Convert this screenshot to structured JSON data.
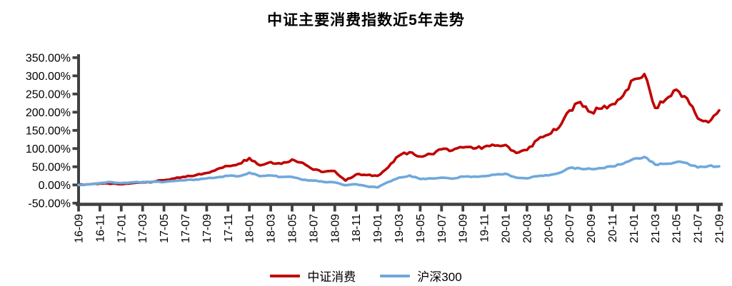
{
  "title": "中证主要消费指数近5年走势",
  "chart_data": {
    "type": "line",
    "title": "中证主要消费指数近5年走势",
    "grid": false,
    "legend_position": "bottom",
    "categories": [
      "16-09",
      "16-10",
      "16-11",
      "16-12",
      "17-01",
      "17-02",
      "17-03",
      "17-04",
      "17-05",
      "17-06",
      "17-07",
      "17-08",
      "17-09",
      "17-10",
      "17-11",
      "17-12",
      "18-01",
      "18-02",
      "18-03",
      "18-04",
      "18-05",
      "18-06",
      "18-07",
      "18-08",
      "18-09",
      "18-10",
      "18-11",
      "18-12",
      "19-01",
      "19-02",
      "19-03",
      "19-04",
      "19-05",
      "19-06",
      "19-07",
      "19-08",
      "19-09",
      "19-10",
      "19-11",
      "19-12",
      "20-01",
      "20-02",
      "20-03",
      "20-04",
      "20-05",
      "20-06",
      "20-07",
      "20-08",
      "20-09",
      "20-10",
      "20-11",
      "20-12",
      "21-01",
      "21-02",
      "21-03",
      "21-04",
      "21-05",
      "21-06",
      "21-07",
      "21-08",
      "21-09"
    ],
    "x_tick_labels": [
      "16-09",
      "16-11",
      "17-01",
      "17-03",
      "17-05",
      "17-07",
      "17-09",
      "17-11",
      "18-01",
      "18-03",
      "18-05",
      "18-07",
      "18-09",
      "18-11",
      "19-01",
      "19-03",
      "19-05",
      "19-07",
      "19-09",
      "19-11",
      "20-01",
      "20-03",
      "20-05",
      "20-07",
      "20-09",
      "20-11",
      "21-01",
      "21-03",
      "21-05",
      "21-07",
      "21-09"
    ],
    "y_axis": {
      "min": -50,
      "max": 350,
      "step": 50,
      "unit": "percent",
      "tick_labels": [
        "350.00%",
        "300.00%",
        "250.00%",
        "200.00%",
        "150.00%",
        "100.00%",
        "50.00%",
        "0.00%",
        "-50.00%"
      ]
    },
    "series": [
      {
        "id": "csi-consumer",
        "name": "中证消费",
        "color": "#C00000",
        "values": [
          0,
          2,
          4,
          3,
          2,
          5,
          7,
          9,
          13,
          18,
          22,
          27,
          33,
          44,
          52,
          58,
          74,
          54,
          63,
          58,
          70,
          61,
          42,
          36,
          38,
          12,
          29,
          27,
          25,
          48,
          80,
          90,
          78,
          85,
          98,
          95,
          103,
          100,
          105,
          108,
          110,
          88,
          96,
          125,
          138,
          158,
          205,
          228,
          200,
          210,
          222,
          245,
          290,
          305,
          212,
          235,
          262,
          238,
          183,
          172,
          205
        ]
      },
      {
        "id": "hs300",
        "name": "沪深300",
        "color": "#6FA8DC",
        "values": [
          0,
          2,
          5,
          8,
          5,
          7,
          8,
          9,
          8,
          11,
          13,
          15,
          18,
          21,
          25,
          24,
          34,
          24,
          26,
          22,
          22,
          14,
          12,
          8,
          7,
          -1,
          2,
          -4,
          -7,
          8,
          20,
          26,
          16,
          18,
          20,
          17,
          23,
          23,
          24,
          28,
          31,
          20,
          18,
          24,
          26,
          33,
          47,
          45,
          44,
          46,
          51,
          58,
          72,
          77,
          56,
          58,
          63,
          60,
          48,
          52,
          51
        ]
      }
    ]
  },
  "legend": {
    "items": [
      {
        "label": "中证消费",
        "color": "#C00000"
      },
      {
        "label": "沪深300",
        "color": "#6FA8DC"
      }
    ]
  },
  "colors": {
    "axis": "#404040",
    "text": "#000000",
    "background": "#FFFFFF"
  }
}
